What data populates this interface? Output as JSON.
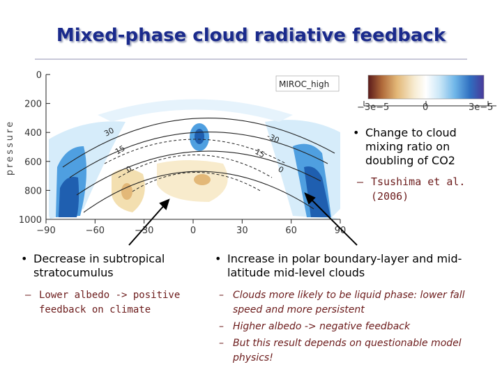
{
  "title": "Mixed-phase cloud radiative feedback",
  "figure": {
    "panel_label": "MIROC_high",
    "y_axis_label": "pressure",
    "y_ticks": [
      "0",
      "200",
      "400",
      "600",
      "800",
      "1000"
    ],
    "x_ticks": [
      "−90",
      "−60",
      "−30",
      "0",
      "30",
      "60",
      "90"
    ],
    "contour_labels": [
      "30",
      "15",
      "0",
      "-30",
      "15",
      "0"
    ],
    "colorbar_ticks": [
      "−3e−5",
      "0",
      "3e−5"
    ],
    "colors": {
      "blue_dark": "#1f5fb0",
      "blue": "#4f9fe0",
      "blue_light": "#bfe0f6",
      "tan": "#f3dfb0",
      "brown": "#b06a3a",
      "purple": "#4a3a9a"
    }
  },
  "right_note": {
    "bullet": "Change to cloud mixing ratio on doubling of CO2",
    "sub": "Tsushima et al. (2006)"
  },
  "left_block": {
    "bullet": "Decrease in subtropical stratocumulus",
    "sub": "Lower albedo -> positive feedback on climate"
  },
  "right_block": {
    "bullet": "Increase in polar boundary-layer and mid-latitude mid-level clouds",
    "subs": [
      "Clouds more likely to be liquid phase: lower fall speed and more persistent",
      "Higher albedo -> negative feedback",
      "But this result depends on questionable model physics!"
    ]
  }
}
